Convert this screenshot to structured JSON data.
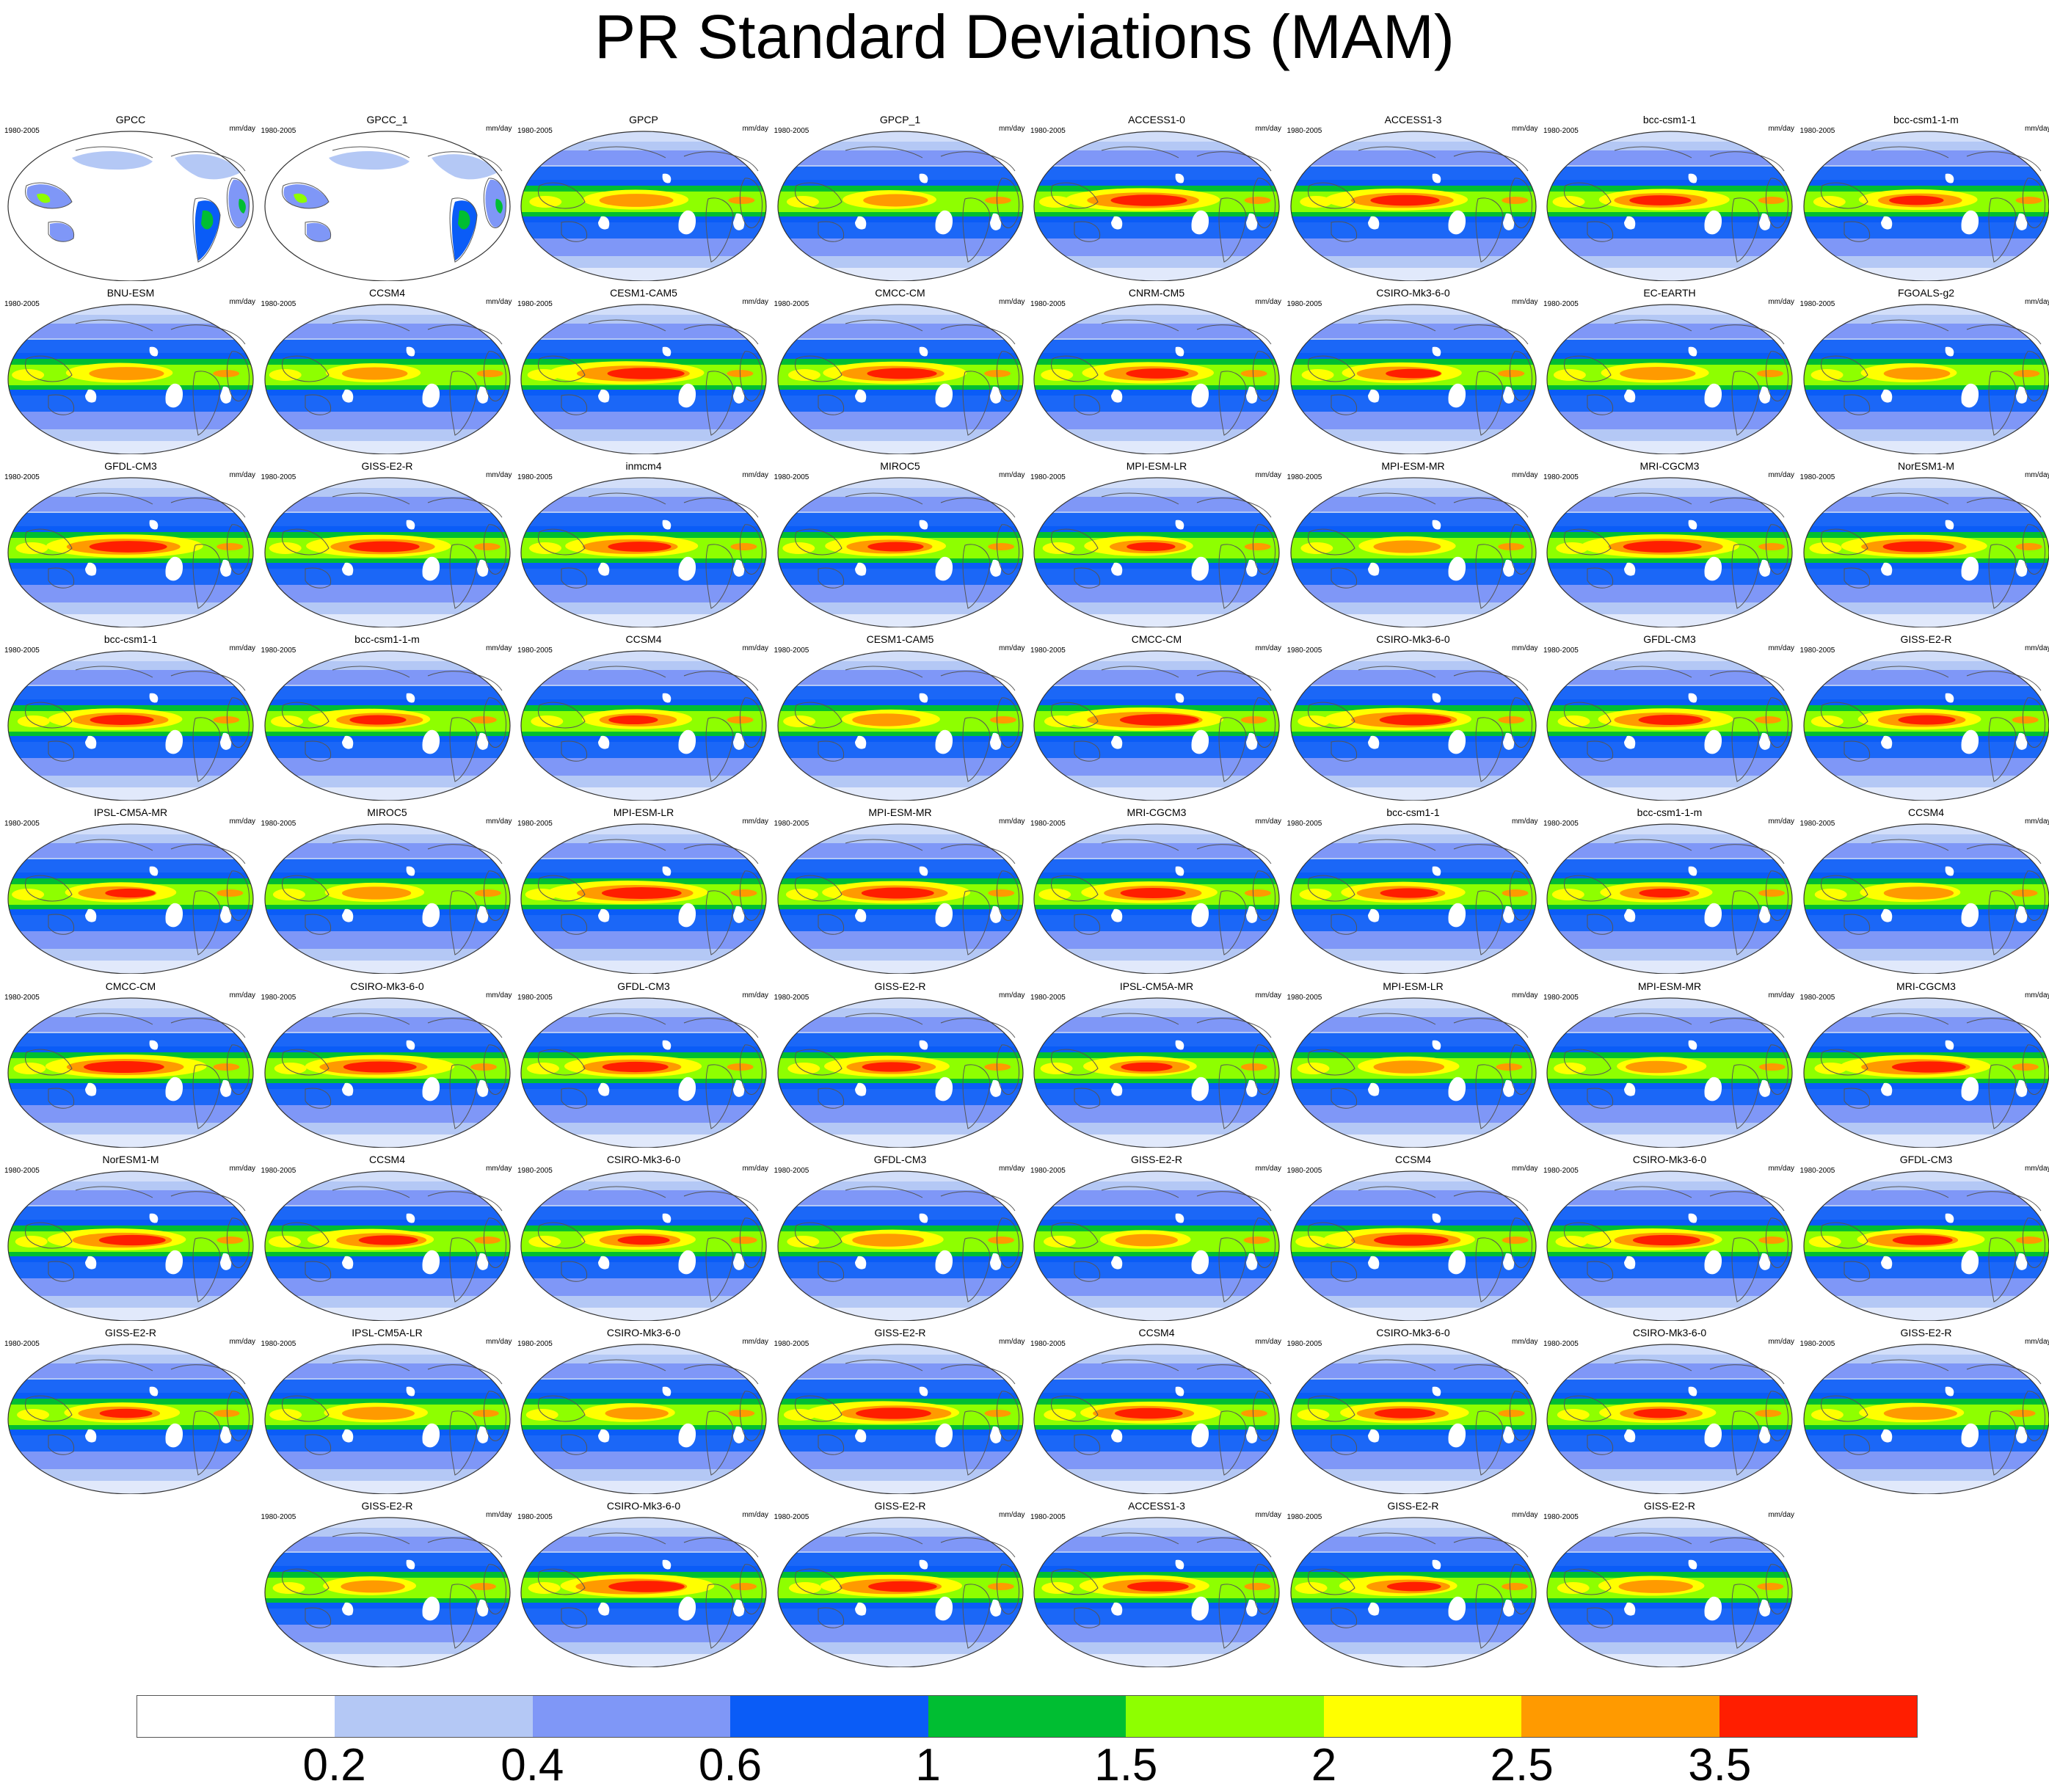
{
  "title": "PR Standard Deviations (MAM)",
  "period_label": "1980-2005",
  "units_label": "mm/day",
  "panels": [
    "GPCC",
    "GPCC_1",
    "GPCP",
    "GPCP_1",
    "ACCESS1-0",
    "ACCESS1-3",
    "bcc-csm1-1",
    "bcc-csm1-1-m",
    "BNU-ESM",
    "CCSM4",
    "CESM1-CAM5",
    "CMCC-CM",
    "CNRM-CM5",
    "CSIRO-Mk3-6-0",
    "EC-EARTH",
    "FGOALS-g2",
    "GFDL-CM3",
    "GISS-E2-R",
    "inmcm4",
    "MIROC5",
    "MPI-ESM-LR",
    "MPI-ESM-MR",
    "MRI-CGCM3",
    "NorESM1-M",
    "bcc-csm1-1",
    "bcc-csm1-1-m",
    "CCSM4",
    "CESM1-CAM5",
    "CMCC-CM",
    "CSIRO-Mk3-6-0",
    "GFDL-CM3",
    "GISS-E2-R",
    "IPSL-CM5A-MR",
    "MIROC5",
    "MPI-ESM-LR",
    "MPI-ESM-MR",
    "MRI-CGCM3",
    "bcc-csm1-1",
    "bcc-csm1-1-m",
    "CCSM4",
    "CMCC-CM",
    "CSIRO-Mk3-6-0",
    "GFDL-CM3",
    "GISS-E2-R",
    "IPSL-CM5A-MR",
    "MPI-ESM-LR",
    "MPI-ESM-MR",
    "MRI-CGCM3",
    "NorESM1-M",
    "CCSM4",
    "CSIRO-Mk3-6-0",
    "GFDL-CM3",
    "GISS-E2-R",
    "CCSM4",
    "CSIRO-Mk3-6-0",
    "GFDL-CM3",
    "GISS-E2-R",
    "IPSL-CM5A-LR",
    "CSIRO-Mk3-6-0",
    "GISS-E2-R",
    "CCSM4",
    "CSIRO-Mk3-6-0",
    "CSIRO-Mk3-6-0",
    "GISS-E2-R",
    "GISS-E2-R",
    "CSIRO-Mk3-6-0",
    "GISS-E2-R",
    "ACCESS1-3",
    "GISS-E2-R",
    "GISS-E2-R"
  ],
  "colorbar": {
    "colors": [
      "#ffffff",
      "#b4c8f5",
      "#7f97f7",
      "#0a5cf7",
      "#00be32",
      "#8eff00",
      "#ffff00",
      "#ff9a00",
      "#ff1e00"
    ],
    "ticks": [
      "0.2",
      "0.4",
      "0.6",
      "1",
      "1.5",
      "2",
      "2.5",
      "3.5"
    ]
  }
}
